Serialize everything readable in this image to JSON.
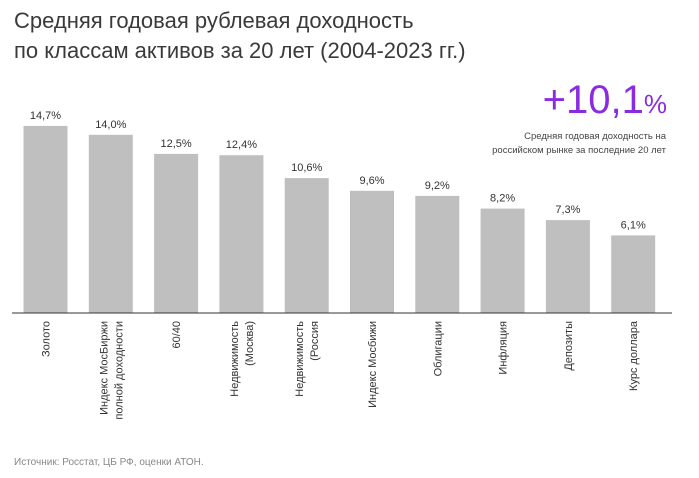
{
  "title_lines": [
    "Средняя годовая рублевая доходность",
    "по классам активов за 20 лет (2004-2023 гг.)"
  ],
  "highlight": {
    "value": "+10,1",
    "unit": "%",
    "caption_lines": [
      "Средняя годовая доходность на",
      "российском рынке за последние 20 лет"
    ]
  },
  "source": "Источник: Росстат, ЦБ РФ, оценки АТОН.",
  "colors": {
    "bar": "#bfbfbf",
    "axis": "#333333",
    "accent": "#8a2be2"
  },
  "chart_data": {
    "type": "bar",
    "title": "Средняя годовая рублевая доходность по классам активов за 20 лет (2004-2023 гг.)",
    "categories": [
      [
        "Золото"
      ],
      [
        "Индекс МосБиржи",
        "полной доходности"
      ],
      [
        "60/40"
      ],
      [
        "Недвижимость",
        "(Москва)"
      ],
      [
        "Недвижимость",
        "(Россия"
      ],
      [
        "Индекс Мосбижи"
      ],
      [
        "Облигации"
      ],
      [
        "Инфляция"
      ],
      [
        "Депозиты"
      ],
      [
        "Курс доллара"
      ]
    ],
    "values": [
      14.7,
      14.0,
      12.5,
      12.4,
      10.6,
      9.6,
      9.2,
      8.2,
      7.3,
      6.1
    ],
    "value_labels": [
      "14,7%",
      "14,0%",
      "12,5%",
      "12,4%",
      "10,6%",
      "9,6%",
      "9,2%",
      "8,2%",
      "7,3%",
      "6,1%"
    ],
    "ylim": [
      0,
      16.5
    ],
    "grid": false,
    "legend": "none"
  }
}
